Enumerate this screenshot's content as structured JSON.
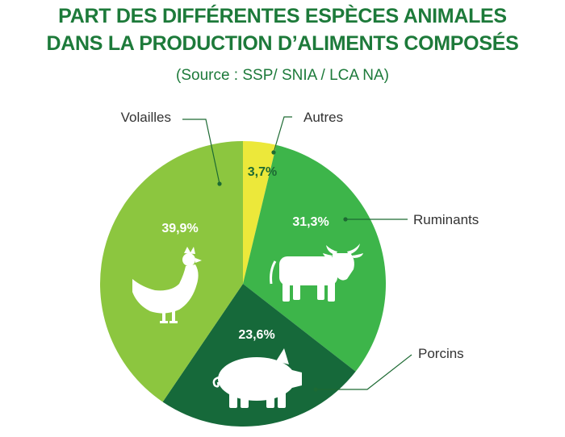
{
  "title_line1": "PART DES DIFFÉRENTES ESPÈCES ANIMALES",
  "title_line2": "DANS LA PRODUCTION D’ALIMENTS COMPOSÉS",
  "source": "(Source : SSP/ SNIA / LCA NA)",
  "chart_data": {
    "type": "pie",
    "title": "PART DES DIFFÉRENTES ESPÈCES ANIMALES DANS LA PRODUCTION D’ALIMENTS COMPOSÉS",
    "subtitle": "(Source : SSP/ SNIA / LCA NA)",
    "unit": "%",
    "slices": [
      {
        "name": "Autres",
        "value": 3.7,
        "label": "3,7%",
        "color": "#ece83a",
        "label_color": "#1d6a33",
        "icon": "none"
      },
      {
        "name": "Ruminants",
        "value": 31.3,
        "label": "31,3%",
        "color": "#3db54a",
        "label_color": "#ffffff",
        "icon": "cow-icon"
      },
      {
        "name": "Porcins",
        "value": 23.6,
        "label": "23,6%",
        "color": "#16693a",
        "label_color": "#ffffff",
        "icon": "pig-icon"
      },
      {
        "name": "Volailles",
        "value": 39.9,
        "label": "39,9%",
        "color": "#8cc63f",
        "label_color": "#ffffff",
        "icon": "chicken-icon"
      }
    ]
  }
}
